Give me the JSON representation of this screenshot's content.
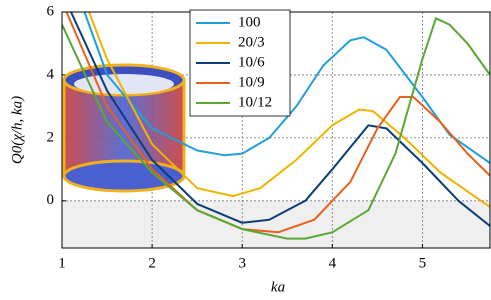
{
  "chart_data": {
    "type": "line",
    "x_label": "ka",
    "y_label": "Q0(χ/h, ka)",
    "xlim": [
      1,
      5.75
    ],
    "ylim": [
      -1.5,
      6
    ],
    "xticks": [
      1,
      2,
      3,
      4,
      5
    ],
    "yticks": [
      0,
      2,
      4,
      6
    ],
    "grid": true,
    "legend": "top",
    "series": [
      {
        "name": "100",
        "color": "#1f9fd8",
        "x": [
          1.25,
          1.5,
          2.0,
          2.5,
          2.8,
          3.0,
          3.3,
          3.6,
          3.9,
          4.2,
          4.35,
          4.6,
          5.0,
          5.3,
          5.75
        ],
        "values": [
          6,
          4,
          2.3,
          1.6,
          1.45,
          1.5,
          2,
          3,
          4.3,
          5.1,
          5.2,
          4.8,
          3.3,
          2.1,
          1.2
        ]
      },
      {
        "name": "20/3",
        "color": "#f0b400",
        "x": [
          1.3,
          1.5,
          2.0,
          2.5,
          2.9,
          3.2,
          3.6,
          4.0,
          4.3,
          4.45,
          4.8,
          5.2,
          5.5,
          5.75
        ],
        "values": [
          6,
          4.5,
          1.8,
          0.4,
          0.15,
          0.4,
          1.3,
          2.4,
          2.9,
          2.85,
          2.0,
          0.9,
          0.3,
          -0.2
        ]
      },
      {
        "name": "10/6",
        "color": "#0b3d7a",
        "x": [
          1.1,
          1.5,
          2.0,
          2.5,
          3.0,
          3.3,
          3.7,
          4.0,
          4.4,
          4.6,
          5.0,
          5.4,
          5.75
        ],
        "values": [
          6,
          3.5,
          1.3,
          -0.1,
          -0.7,
          -0.6,
          0,
          1.0,
          2.4,
          2.3,
          1.2,
          0,
          -0.8
        ]
      },
      {
        "name": "10/9",
        "color": "#e8601c",
        "x": [
          1.05,
          1.5,
          2.0,
          2.5,
          3.0,
          3.4,
          3.8,
          4.2,
          4.5,
          4.75,
          4.9,
          5.2,
          5.5,
          5.75
        ],
        "values": [
          6,
          3,
          1,
          -0.3,
          -0.9,
          -1.0,
          -0.6,
          0.6,
          2.3,
          3.3,
          3.3,
          2.5,
          1.5,
          0.8
        ]
      },
      {
        "name": "10/12",
        "color": "#5aa832",
        "x": [
          1.0,
          1.5,
          2.0,
          2.5,
          3.0,
          3.5,
          3.7,
          4.0,
          4.4,
          4.7,
          5.0,
          5.15,
          5.3,
          5.5,
          5.75
        ],
        "values": [
          5.6,
          2.5,
          0.9,
          -0.3,
          -0.9,
          -1.2,
          -1.2,
          -1.0,
          -0.3,
          1.5,
          4.5,
          5.8,
          5.6,
          5.0,
          4.0
        ]
      }
    ]
  }
}
